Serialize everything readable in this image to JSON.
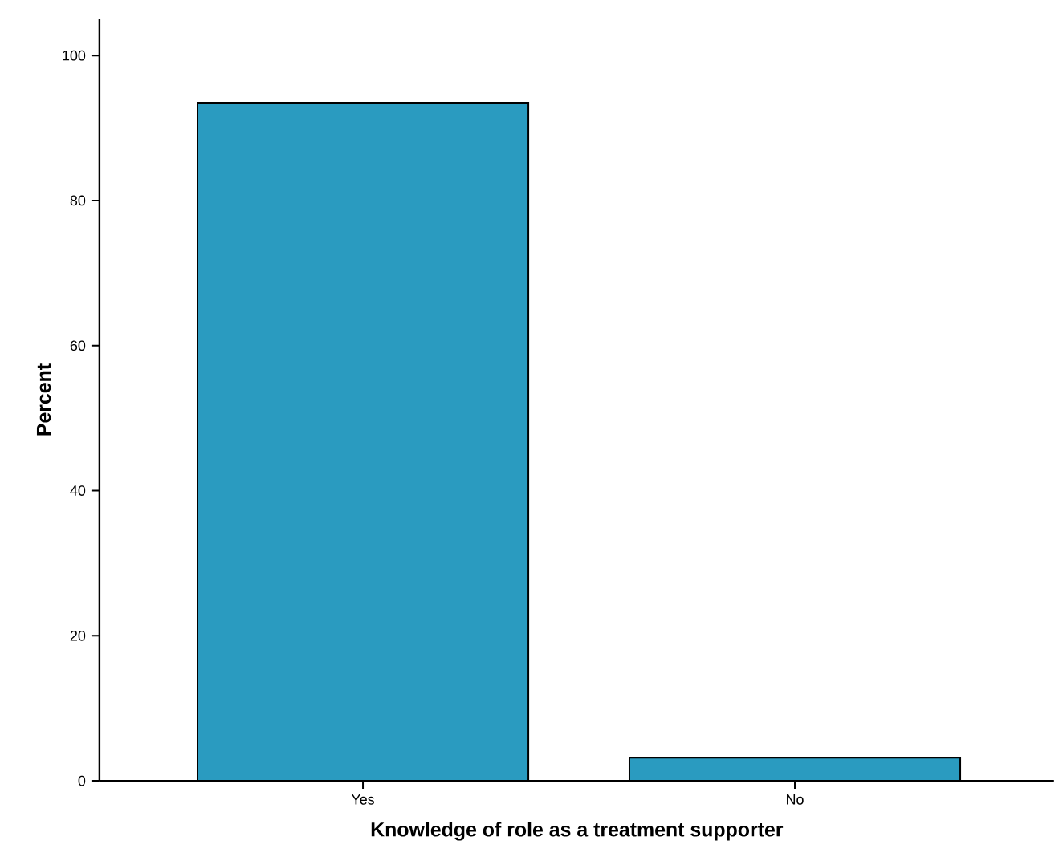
{
  "chart_data": {
    "type": "bar",
    "xlabel": "Knowledge of role as a treatment supporter",
    "ylabel": "Percent",
    "categories": [
      "Yes",
      "No"
    ],
    "values": [
      93.5,
      3.2
    ],
    "color": "#2a9bc0",
    "ylim": [
      0,
      105
    ],
    "yticks": [
      0,
      20,
      40,
      60,
      80,
      100
    ]
  }
}
